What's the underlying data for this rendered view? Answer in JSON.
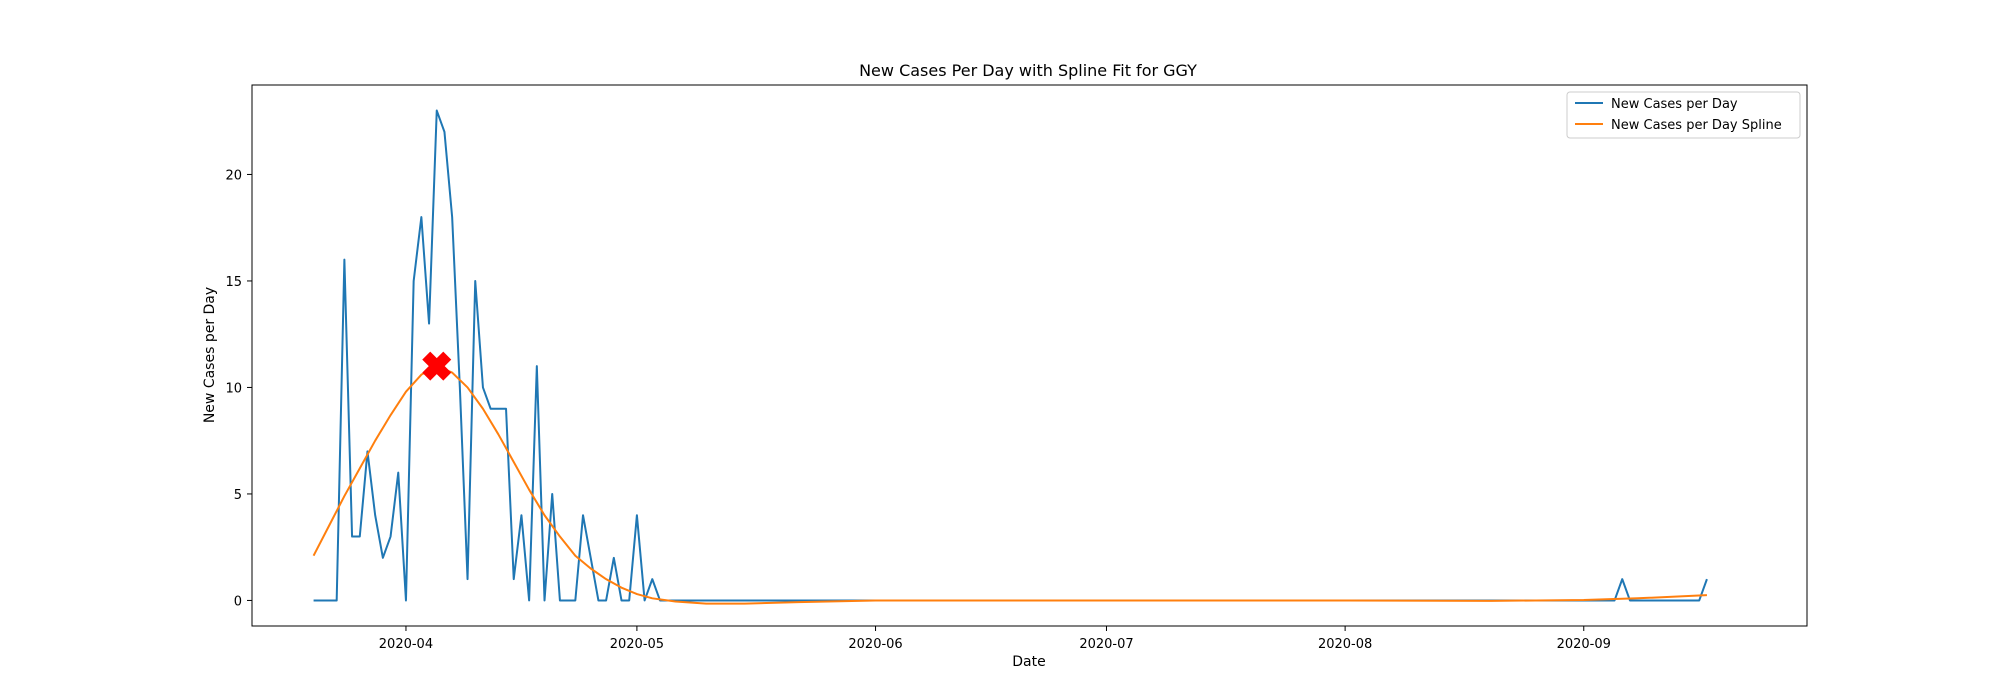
{
  "chart_data": {
    "type": "line",
    "title": "New Cases Per Day with Spline Fit for GGY",
    "xlabel": "Date",
    "ylabel": "New Cases per Day",
    "xlim": [
      "2020-03-12",
      "2020-09-30"
    ],
    "ylim": [
      -1.2,
      24.2
    ],
    "x_ticks": [
      "2020-04-01",
      "2020-05-01",
      "2020-06-01",
      "2020-07-01",
      "2020-08-01",
      "2020-09-01"
    ],
    "x_tick_labels": [
      "2020-04",
      "2020-05",
      "2020-06",
      "2020-07",
      "2020-08",
      "2020-09"
    ],
    "y_ticks": [
      0,
      5,
      10,
      15,
      20
    ],
    "y_tick_labels": [
      "0",
      "5",
      "10",
      "15",
      "20"
    ],
    "grid": false,
    "legend_position": "top-right",
    "series": [
      {
        "name": "New Cases per Day",
        "color": "#1f77b4",
        "points": [
          [
            "2020-03-20",
            0
          ],
          [
            "2020-03-22",
            0
          ],
          [
            "2020-03-23",
            0
          ],
          [
            "2020-03-24",
            16
          ],
          [
            "2020-03-25",
            3
          ],
          [
            "2020-03-26",
            3
          ],
          [
            "2020-03-27",
            7
          ],
          [
            "2020-03-28",
            4
          ],
          [
            "2020-03-29",
            2
          ],
          [
            "2020-03-30",
            3
          ],
          [
            "2020-03-31",
            6
          ],
          [
            "2020-04-01",
            0
          ],
          [
            "2020-04-02",
            15
          ],
          [
            "2020-04-03",
            18
          ],
          [
            "2020-04-04",
            13
          ],
          [
            "2020-04-05",
            23
          ],
          [
            "2020-04-06",
            22
          ],
          [
            "2020-04-07",
            18
          ],
          [
            "2020-04-08",
            10
          ],
          [
            "2020-04-09",
            1
          ],
          [
            "2020-04-10",
            15
          ],
          [
            "2020-04-11",
            10
          ],
          [
            "2020-04-12",
            9
          ],
          [
            "2020-04-13",
            9
          ],
          [
            "2020-04-14",
            9
          ],
          [
            "2020-04-15",
            1
          ],
          [
            "2020-04-16",
            4
          ],
          [
            "2020-04-17",
            0
          ],
          [
            "2020-04-18",
            11
          ],
          [
            "2020-04-19",
            0
          ],
          [
            "2020-04-20",
            5
          ],
          [
            "2020-04-21",
            0
          ],
          [
            "2020-04-22",
            0
          ],
          [
            "2020-04-23",
            0
          ],
          [
            "2020-04-24",
            4
          ],
          [
            "2020-04-25",
            2
          ],
          [
            "2020-04-26",
            0
          ],
          [
            "2020-04-27",
            0
          ],
          [
            "2020-04-28",
            2
          ],
          [
            "2020-04-29",
            0
          ],
          [
            "2020-04-30",
            0
          ],
          [
            "2020-05-01",
            4
          ],
          [
            "2020-05-02",
            0
          ],
          [
            "2020-05-03",
            1
          ],
          [
            "2020-05-04",
            0
          ],
          [
            "2020-05-10",
            0
          ],
          [
            "2020-06-01",
            0
          ],
          [
            "2020-07-01",
            0
          ],
          [
            "2020-08-01",
            0
          ],
          [
            "2020-09-01",
            0
          ],
          [
            "2020-09-05",
            0
          ],
          [
            "2020-09-06",
            1
          ],
          [
            "2020-09-07",
            0
          ],
          [
            "2020-09-10",
            0
          ],
          [
            "2020-09-16",
            0
          ],
          [
            "2020-09-17",
            1
          ]
        ]
      },
      {
        "name": "New Cases per Day Spline",
        "color": "#ff7f0e",
        "points": [
          [
            "2020-03-20",
            2.1
          ],
          [
            "2020-03-22",
            3.5
          ],
          [
            "2020-03-24",
            4.9
          ],
          [
            "2020-03-26",
            6.2
          ],
          [
            "2020-03-28",
            7.5
          ],
          [
            "2020-03-30",
            8.7
          ],
          [
            "2020-04-01",
            9.8
          ],
          [
            "2020-04-03",
            10.6
          ],
          [
            "2020-04-05",
            11.0
          ],
          [
            "2020-04-07",
            10.7
          ],
          [
            "2020-04-09",
            10.0
          ],
          [
            "2020-04-11",
            9.0
          ],
          [
            "2020-04-13",
            7.8
          ],
          [
            "2020-04-15",
            6.5
          ],
          [
            "2020-04-17",
            5.2
          ],
          [
            "2020-04-19",
            4.0
          ],
          [
            "2020-04-21",
            3.0
          ],
          [
            "2020-04-23",
            2.1
          ],
          [
            "2020-04-25",
            1.5
          ],
          [
            "2020-04-27",
            1.0
          ],
          [
            "2020-04-29",
            0.6
          ],
          [
            "2020-05-01",
            0.3
          ],
          [
            "2020-05-03",
            0.1
          ],
          [
            "2020-05-06",
            -0.05
          ],
          [
            "2020-05-10",
            -0.15
          ],
          [
            "2020-05-15",
            -0.15
          ],
          [
            "2020-05-22",
            -0.08
          ],
          [
            "2020-06-01",
            0
          ],
          [
            "2020-07-01",
            0
          ],
          [
            "2020-08-01",
            0
          ],
          [
            "2020-08-20",
            -0.02
          ],
          [
            "2020-09-01",
            0.02
          ],
          [
            "2020-09-08",
            0.1
          ],
          [
            "2020-09-17",
            0.25
          ]
        ]
      }
    ],
    "markers": [
      {
        "x": "2020-04-05",
        "y": 11.0,
        "symbol": "X",
        "color": "#ff0000"
      }
    ]
  }
}
